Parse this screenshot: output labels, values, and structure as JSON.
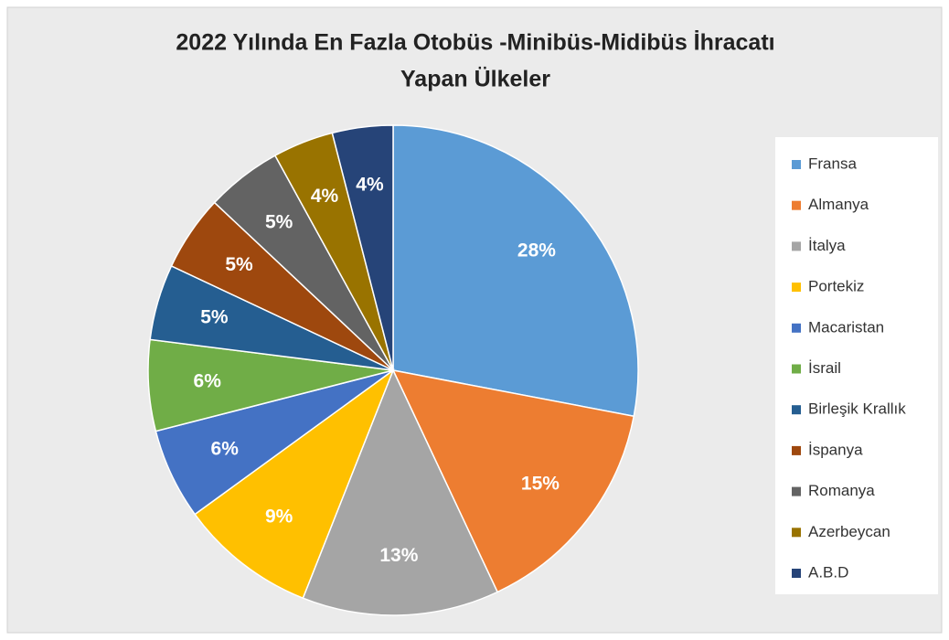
{
  "chart_data": {
    "type": "pie",
    "title": [
      "2022 Yılında En Fazla Otobüs -Minibüs-Midibüs İhracatı",
      "Yapan Ülkeler"
    ],
    "categories": [
      "Fransa",
      "Almanya",
      "İtalya",
      "Portekiz",
      "Macaristan",
      "İsrail",
      "Birleşik Krallık",
      "İspanya",
      "Romanya",
      "Azerbeycan",
      "A.B.D"
    ],
    "values": [
      28,
      15,
      13,
      9,
      6,
      6,
      5,
      5,
      5,
      4,
      4
    ],
    "value_labels": [
      "28%",
      "15%",
      "13%",
      "9%",
      "6%",
      "6%",
      "5%",
      "5%",
      "5%",
      "4%",
      "4%"
    ],
    "colors": [
      "#5b9bd5",
      "#ed7d31",
      "#a5a5a5",
      "#ffc000",
      "#4472c4",
      "#70ad47",
      "#255e91",
      "#9e480e",
      "#636363",
      "#997300",
      "#264478"
    ],
    "legend": "right"
  }
}
